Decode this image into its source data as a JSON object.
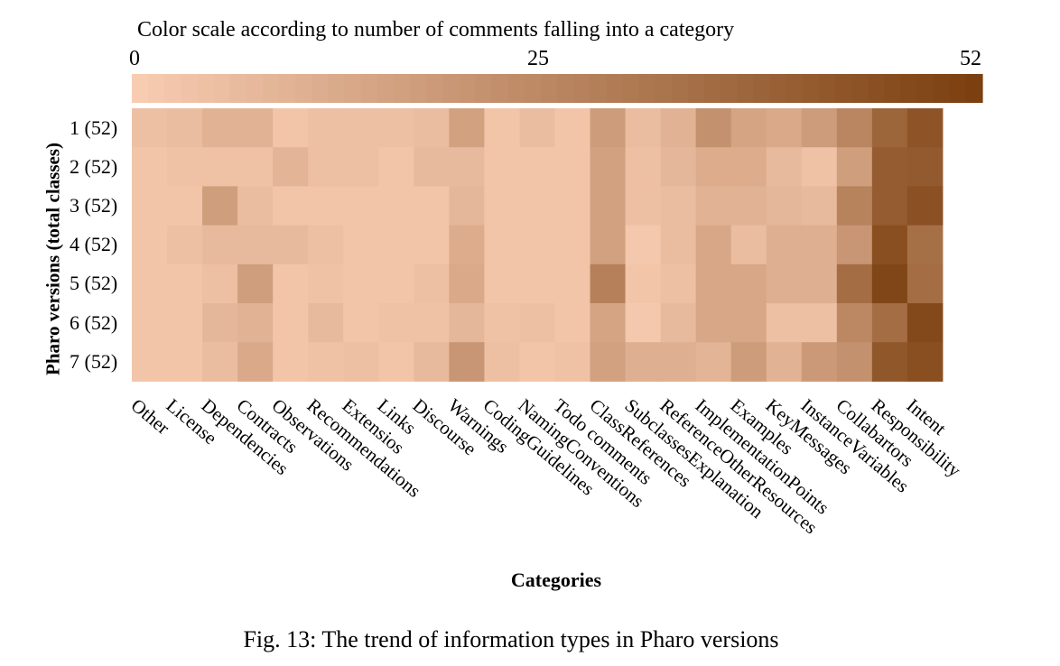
{
  "chart_data": {
    "type": "heatmap",
    "color_scale": {
      "title": "Color scale according to number of comments falling into a category",
      "min": 0,
      "mid": 25,
      "max": 52,
      "min_label": "0",
      "mid_label": "25",
      "max_label": "52",
      "low_color": "#f9cdb3",
      "high_color": "#7a3e0e"
    },
    "xlabel": "Categories",
    "ylabel": "Pharo versions (total classes)",
    "categories": [
      "Other",
      "License",
      "Dependencies",
      "Contracts",
      "Observations",
      "Recommendations",
      "Extensios",
      "Links",
      "Discourse",
      "Warnings",
      "CodingGuidelines",
      "NamingConventions",
      "Todo comments",
      "ClassReferences",
      "SubclassesExplanation",
      "ReferenceOtherResources",
      "ImplementationPoints",
      "Examples",
      "KeyMessages",
      "InstanceVariables",
      "Collabartors",
      "Responsibility",
      "Intent"
    ],
    "rows": [
      "1 (52)",
      "2 (52)",
      "3 (52)",
      "4 (52)",
      "5 (52)",
      "6 (52)",
      "7 (52)"
    ],
    "values": [
      [
        5,
        6,
        10,
        10,
        3,
        5,
        5,
        5,
        6,
        16,
        3,
        6,
        3,
        18,
        6,
        10,
        22,
        15,
        13,
        18,
        26,
        38,
        44
      ],
      [
        3,
        4,
        4,
        4,
        9,
        5,
        5,
        3,
        7,
        7,
        3,
        3,
        3,
        16,
        5,
        8,
        12,
        12,
        7,
        4,
        17,
        41,
        42
      ],
      [
        3,
        3,
        17,
        6,
        3,
        3,
        3,
        3,
        3,
        8,
        3,
        3,
        3,
        16,
        5,
        6,
        10,
        10,
        8,
        7,
        27,
        41,
        45
      ],
      [
        3,
        5,
        7,
        7,
        7,
        5,
        3,
        3,
        3,
        12,
        3,
        3,
        3,
        16,
        2,
        6,
        14,
        6,
        11,
        11,
        20,
        46,
        34
      ],
      [
        3,
        3,
        5,
        17,
        3,
        4,
        3,
        3,
        5,
        13,
        3,
        3,
        3,
        28,
        3,
        5,
        14,
        14,
        11,
        11,
        35,
        49,
        35
      ],
      [
        3,
        3,
        8,
        10,
        3,
        7,
        3,
        4,
        4,
        8,
        4,
        5,
        3,
        15,
        2,
        7,
        14,
        14,
        5,
        5,
        25,
        35,
        48
      ],
      [
        3,
        3,
        6,
        13,
        3,
        4,
        5,
        3,
        7,
        20,
        5,
        3,
        4,
        16,
        11,
        11,
        9,
        18,
        10,
        19,
        22,
        43,
        46
      ]
    ]
  },
  "caption": "Fig. 13: The trend of information types in Pharo versions"
}
